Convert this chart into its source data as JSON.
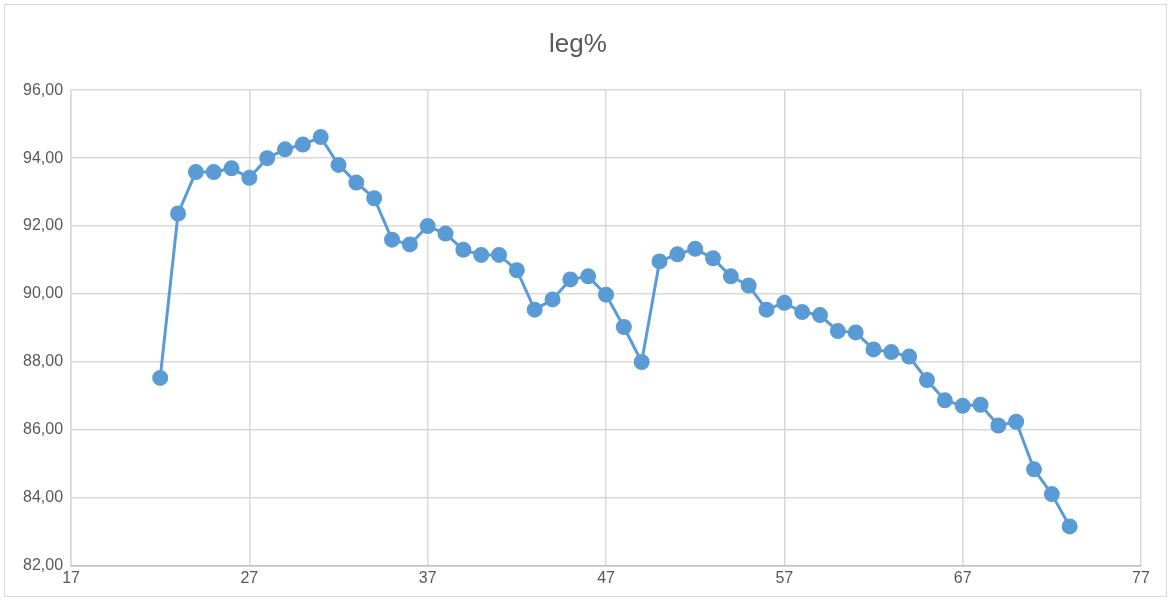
{
  "chart_data": {
    "type": "line",
    "title": "leg%",
    "x": [
      22,
      23,
      24,
      25,
      26,
      27,
      28,
      29,
      30,
      31,
      32,
      33,
      34,
      35,
      36,
      37,
      38,
      39,
      40,
      41,
      42,
      43,
      44,
      45,
      46,
      47,
      48,
      49,
      50,
      51,
      52,
      53,
      54,
      55,
      56,
      57,
      58,
      59,
      60,
      61,
      62,
      63,
      64,
      65,
      66,
      67,
      68,
      69,
      70,
      71,
      72,
      73
    ],
    "series": [
      {
        "color": "#5b9bd5",
        "values": [
          87.53,
          92.37,
          93.59,
          93.59,
          93.7,
          93.42,
          94.0,
          94.26,
          94.4,
          94.62,
          93.8,
          93.28,
          92.82,
          91.6,
          91.46,
          92.0,
          91.78,
          91.3,
          91.15,
          91.15,
          90.7,
          89.54,
          89.84,
          90.43,
          90.52,
          89.98,
          89.03,
          88.0,
          90.96,
          91.17,
          91.33,
          91.05,
          90.52,
          90.25,
          89.54,
          89.74,
          89.47,
          89.38,
          88.91,
          88.87,
          88.37,
          88.29,
          88.16,
          87.47,
          86.87,
          86.71,
          86.74,
          86.13,
          86.24,
          84.84,
          84.11,
          83.16
        ]
      }
    ],
    "xlim": [
      17,
      77
    ],
    "xticks": [
      17,
      27,
      37,
      47,
      57,
      67,
      77
    ],
    "ylim": [
      82,
      96
    ],
    "yticks": [
      {
        "value": 82,
        "label": "82,00"
      },
      {
        "value": 84,
        "label": "84,00"
      },
      {
        "value": 86,
        "label": "86,00"
      },
      {
        "value": 88,
        "label": "88,00"
      },
      {
        "value": 90,
        "label": "90,00"
      },
      {
        "value": 92,
        "label": "92,00"
      },
      {
        "value": 94,
        "label": "94,00"
      },
      {
        "value": 96,
        "label": "96,00"
      }
    ],
    "grid": true,
    "marker": "circle",
    "line_style": "solid",
    "legend": false
  }
}
